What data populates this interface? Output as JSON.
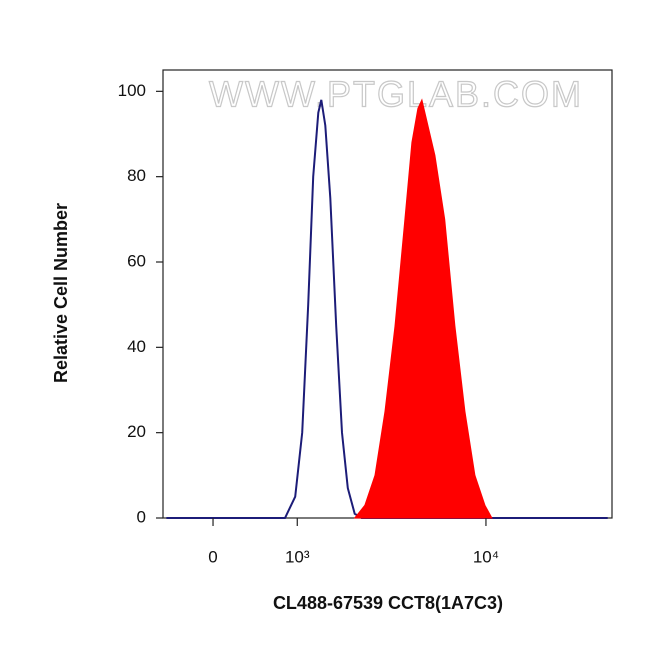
{
  "chart_data": {
    "type": "histogram-overlay",
    "watermark": "WWW.PTGLAB.COM",
    "x_label": "CL488-67539 CCT8(1A7C3)",
    "y_label": "Relative Cell Number",
    "x_scale": "biexponential",
    "xlim": [
      -540,
      42000
    ],
    "xticks": [
      0,
      {
        "value": 1000,
        "label": "10³"
      },
      {
        "value": 10000,
        "label": "10⁴"
      }
    ],
    "ylim": [
      0,
      105
    ],
    "yticks": [
      0,
      20,
      40,
      60,
      80,
      100
    ],
    "series": [
      {
        "color": "#1c1c78",
        "fill": false,
        "x": [
          -500,
          822,
          969,
          1077,
          1176,
          1261,
          1353,
          1409,
          1487,
          1588,
          1714,
          1847,
          1987,
          2164,
          2355,
          40000
        ],
        "values": [
          0,
          0,
          5,
          20,
          50,
          80,
          95,
          98,
          92,
          75,
          45,
          20,
          7,
          1,
          0,
          0
        ]
      },
      {
        "color": "#ff0000",
        "fill": true,
        "x": [
          2164,
          2450,
          2767,
          3117,
          3504,
          3938,
          4271,
          4581,
          4797,
          5139,
          5571,
          6237,
          7011,
          7866,
          8811,
          9882,
          10701
        ],
        "values": [
          0,
          3,
          10,
          25,
          45,
          70,
          88,
          96,
          98,
          92,
          85,
          70,
          45,
          25,
          10,
          3,
          0
        ]
      }
    ]
  }
}
